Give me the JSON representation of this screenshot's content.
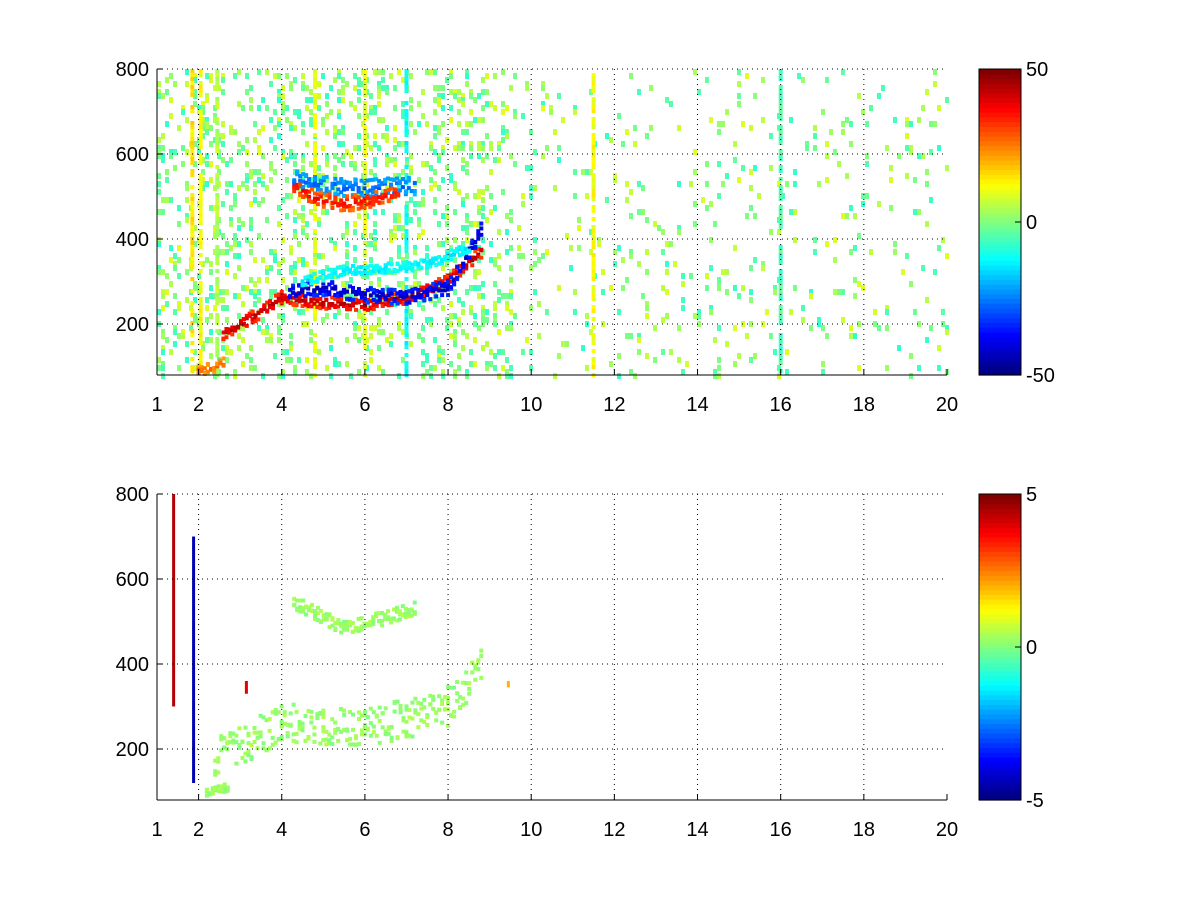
{
  "chart_data": [
    {
      "type": "heatmap",
      "title": "",
      "xlabel": "",
      "ylabel": "",
      "colormap": "jet",
      "xlim": [
        1,
        20
      ],
      "ylim": [
        80,
        800
      ],
      "xticks": [
        1,
        2,
        4,
        6,
        8,
        10,
        12,
        14,
        16,
        18,
        20
      ],
      "xtick_labels": [
        "1",
        "2",
        "4",
        "6",
        "8",
        "10",
        "12",
        "14",
        "16",
        "18",
        "20"
      ],
      "yticks": [
        200,
        400,
        600,
        800
      ],
      "ytick_labels": [
        "200",
        "400",
        "600",
        "800"
      ],
      "grid": true,
      "colorbar": {
        "min": -50,
        "max": 50,
        "ticks": [
          -50,
          0,
          50
        ],
        "tick_labels": [
          "-50",
          "0",
          "50"
        ]
      },
      "features": [
        {
          "name": "upper-arc-top",
          "points": [
            [
              4.3,
              540
            ],
            [
              4.8,
              530
            ],
            [
              5.5,
              520
            ],
            [
              6.2,
              520
            ],
            [
              7.2,
              525
            ]
          ],
          "value": -28,
          "halo": 18
        },
        {
          "name": "upper-arc-bottom",
          "points": [
            [
              4.3,
              525
            ],
            [
              4.8,
              495
            ],
            [
              5.5,
              482
            ],
            [
              6.2,
              492
            ],
            [
              6.8,
              510
            ]
          ],
          "value": 38,
          "halo": 15
        },
        {
          "name": "lower-band-red",
          "points": [
            [
              2.6,
              175
            ],
            [
              3.3,
              215
            ],
            [
              4.0,
              262
            ],
            [
              5.0,
              250
            ],
            [
              6.0,
              245
            ],
            [
              7.0,
              262
            ],
            [
              8.0,
              300
            ],
            [
              8.8,
              370
            ]
          ],
          "value": 45,
          "halo": 12
        },
        {
          "name": "lower-band-blue",
          "points": [
            [
              4.2,
              275
            ],
            [
              5.0,
              285
            ],
            [
              6.0,
              268
            ],
            [
              7.0,
              262
            ],
            [
              8.0,
              285
            ],
            [
              8.8,
              420
            ]
          ],
          "value": -45,
          "halo": 15
        },
        {
          "name": "lower-band-cyan",
          "points": [
            [
              4.5,
              300
            ],
            [
              5.5,
              325
            ],
            [
              6.5,
              330
            ],
            [
              7.5,
              340
            ],
            [
              8.5,
              380
            ]
          ],
          "value": -15,
          "halo": 10
        },
        {
          "name": "base-streak",
          "points": [
            [
              2.0,
              90
            ],
            [
              2.6,
              105
            ]
          ],
          "value": 28,
          "halo": 12
        }
      ],
      "vertical_bands": [
        {
          "x": 1.85,
          "value": 15
        },
        {
          "x": 2.05,
          "value": 12
        },
        {
          "x": 2.45,
          "value": 5
        },
        {
          "x": 4.8,
          "value": 10
        },
        {
          "x": 6.0,
          "value": 10
        },
        {
          "x": 7.0,
          "value": -12
        },
        {
          "x": 11.5,
          "value": 12
        },
        {
          "x": 16.0,
          "value": -5
        }
      ]
    },
    {
      "type": "heatmap",
      "title": "",
      "xlabel": "",
      "ylabel": "",
      "colormap": "jet",
      "xlim": [
        1,
        20
      ],
      "ylim": [
        80,
        800
      ],
      "xticks": [
        1,
        2,
        4,
        6,
        8,
        10,
        12,
        14,
        16,
        18,
        20
      ],
      "xtick_labels": [
        "1",
        "2",
        "4",
        "6",
        "8",
        "10",
        "12",
        "14",
        "16",
        "18",
        "20"
      ],
      "yticks": [
        200,
        400,
        600,
        800
      ],
      "ytick_labels": [
        "200",
        "400",
        "600",
        "800"
      ],
      "grid": true,
      "colorbar": {
        "min": -5,
        "max": 5,
        "ticks": [
          -5,
          0,
          5
        ],
        "tick_labels": [
          "-5",
          "0",
          "5"
        ]
      },
      "features": [
        {
          "name": "upper-arc",
          "points": [
            [
              4.3,
              545
            ],
            [
              4.8,
              520
            ],
            [
              5.5,
              485
            ],
            [
              6.2,
              500
            ],
            [
              7.2,
              530
            ]
          ],
          "value": 0.3,
          "halo": 14
        },
        {
          "name": "lower-band",
          "points": [
            [
              2.4,
              180
            ],
            [
              3.2,
              215
            ],
            [
              4.0,
              262
            ],
            [
              5.0,
              250
            ],
            [
              6.0,
              250
            ],
            [
              7.0,
              270
            ],
            [
              8.0,
              300
            ],
            [
              8.8,
              400
            ]
          ],
          "value": 0.3,
          "halo": 40
        },
        {
          "name": "base-streak",
          "points": [
            [
              2.2,
              95
            ],
            [
              2.7,
              110
            ]
          ],
          "value": 0.3,
          "halo": 8
        }
      ],
      "spikes": [
        {
          "x": 1.4,
          "y0": 300,
          "y1": 800,
          "value": 4.5
        },
        {
          "x": 1.88,
          "y0": 120,
          "y1": 700,
          "value": -4.5
        },
        {
          "x": 3.15,
          "y0": 330,
          "y1": 360,
          "value": 4.0
        },
        {
          "x": 9.45,
          "y0": 345,
          "y1": 360,
          "value": 2.0
        }
      ]
    }
  ]
}
